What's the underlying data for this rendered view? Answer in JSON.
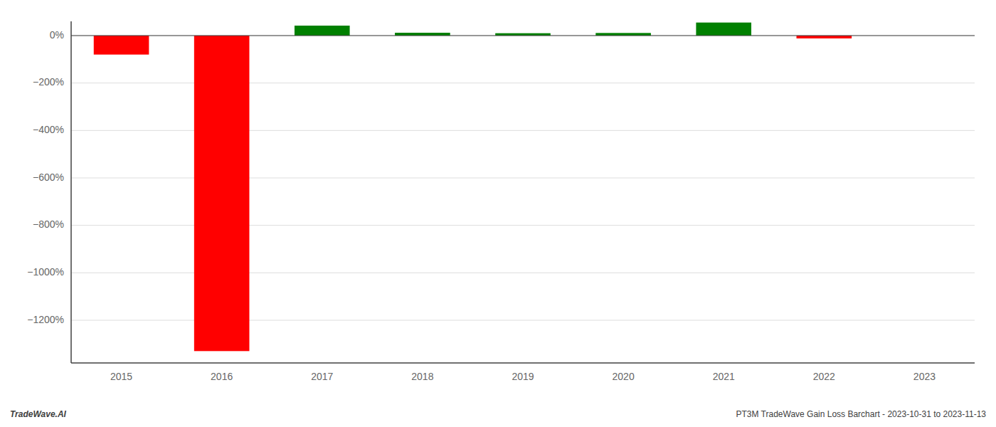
{
  "chart_data": {
    "type": "bar",
    "categories": [
      "2015",
      "2016",
      "2017",
      "2018",
      "2019",
      "2020",
      "2021",
      "2022",
      "2023"
    ],
    "values": [
      -80,
      -1330,
      42,
      12,
      10,
      11,
      55,
      -12,
      0
    ],
    "colors": [
      "#ff0000",
      "#ff0000",
      "#008000",
      "#008000",
      "#008000",
      "#008000",
      "#008000",
      "#ff0000",
      "#008000"
    ],
    "ylim": [
      -1380,
      60
    ],
    "yticks": [
      {
        "value": 0,
        "label": "0%"
      },
      {
        "value": -200,
        "label": "−200%"
      },
      {
        "value": -400,
        "label": "−400%"
      },
      {
        "value": -600,
        "label": "−600%"
      },
      {
        "value": -800,
        "label": "−800%"
      },
      {
        "value": -1000,
        "label": "−1000%"
      },
      {
        "value": -1200,
        "label": "−1200%"
      }
    ],
    "grid": true,
    "annotations": [
      "TradeWave.AI",
      "PT3M TradeWave Gain Loss Barchart - 2023-10-31 to 2023-11-13"
    ]
  }
}
